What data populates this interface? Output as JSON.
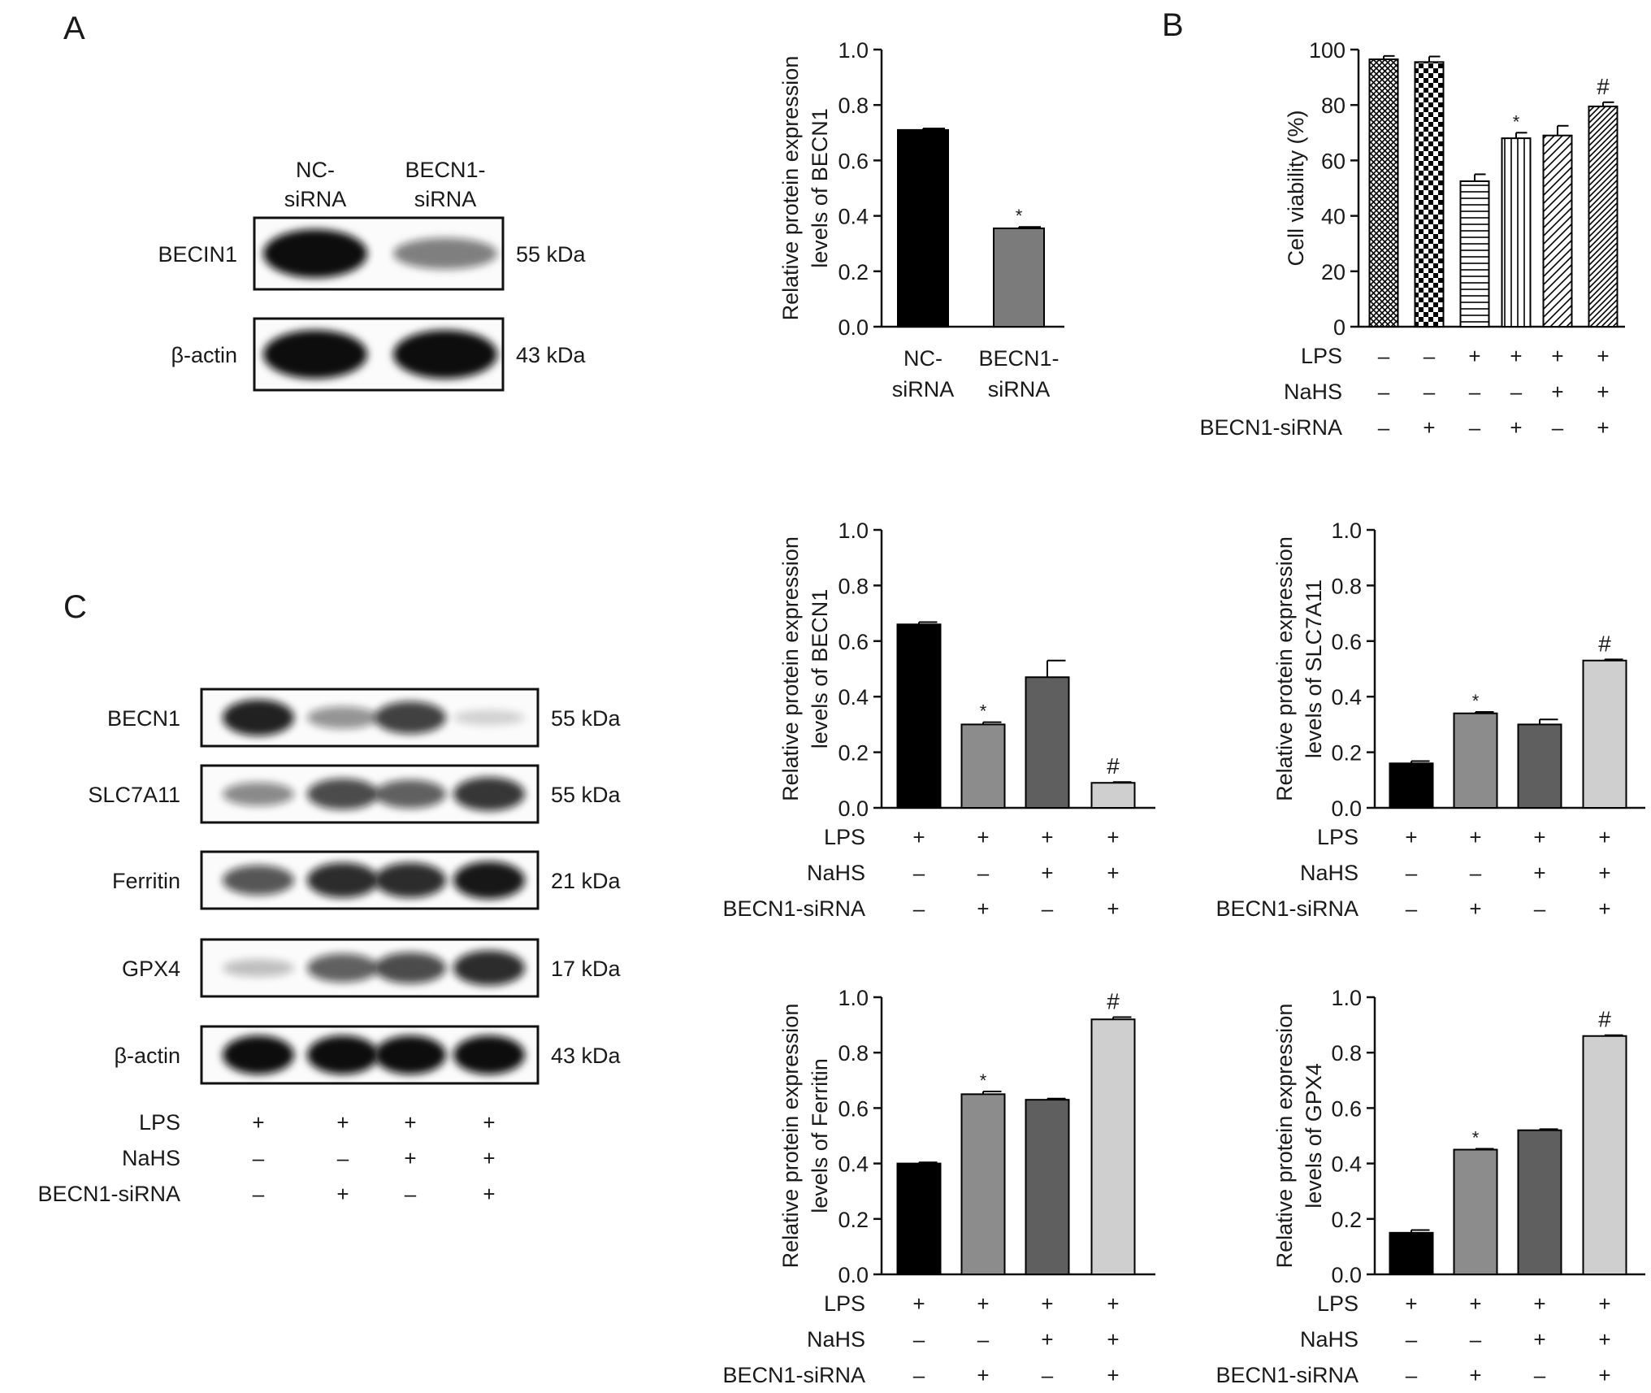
{
  "panels": {
    "A": "A",
    "B": "B",
    "C": "C"
  },
  "blots": {
    "A": {
      "lanes": [
        "NC-\nsiRNA",
        "BECN1-\nsiRNA"
      ],
      "rows": [
        {
          "protein": "BECIN1",
          "size": "55 kDa",
          "intensity": [
            1.0,
            0.45
          ]
        },
        {
          "protein": "β-actin",
          "size": "43 kDa",
          "intensity": [
            1.0,
            1.0
          ]
        }
      ]
    },
    "C": {
      "rows": [
        {
          "protein": "BECN1",
          "size": "55 kDa",
          "intensity": [
            0.9,
            0.35,
            0.75,
            0.06
          ]
        },
        {
          "protein": "SLC7A11",
          "size": "55 kDa",
          "intensity": [
            0.4,
            0.7,
            0.6,
            0.8
          ]
        },
        {
          "protein": "Ferritin",
          "size": "21 kDa",
          "intensity": [
            0.65,
            0.85,
            0.85,
            0.95
          ]
        },
        {
          "protein": "GPX4",
          "size": "17 kDa",
          "intensity": [
            0.15,
            0.6,
            0.7,
            0.85
          ]
        },
        {
          "protein": "β-actin",
          "size": "43 kDa",
          "intensity": [
            1.0,
            1.0,
            1.0,
            1.0
          ]
        }
      ],
      "treatments": [
        {
          "name": "LPS",
          "values": [
            "+",
            "+",
            "+",
            "+"
          ]
        },
        {
          "name": "NaHS",
          "values": [
            "–",
            "–",
            "+",
            "+"
          ]
        },
        {
          "name": "BECN1-siRNA",
          "values": [
            "–",
            "+",
            "–",
            "+"
          ]
        }
      ]
    }
  },
  "chart_data": [
    {
      "id": "A-becn1",
      "type": "bar",
      "ylabel": "Relative protein expression\nlevels of BECN1",
      "ylim": [
        0,
        1.0
      ],
      "yticks": [
        "0.0",
        "0.2",
        "0.4",
        "0.6",
        "0.8",
        "1.0"
      ],
      "categories": [
        "NC-\nsiRNA",
        "BECN1-\nsiRNA"
      ],
      "values": [
        0.71,
        0.355
      ],
      "errors": [
        0.005,
        0.005
      ],
      "colors": [
        "#000000",
        "#7b7b7b"
      ],
      "patterns": [
        "solid",
        "solid"
      ],
      "annotations": [
        "",
        "*"
      ]
    },
    {
      "id": "B-viability",
      "type": "bar",
      "ylabel": "Cell viability (%)",
      "ylim": [
        0,
        100
      ],
      "yticks": [
        "0",
        "20",
        "40",
        "60",
        "80",
        "100"
      ],
      "values": [
        96.5,
        95.5,
        52.5,
        68,
        69,
        79.5
      ],
      "errors": [
        1.2,
        2.0,
        2.5,
        2.0,
        3.5,
        1.5
      ],
      "colors": [
        "#ffffff",
        "#ffffff",
        "#ffffff",
        "#ffffff",
        "#ffffff",
        "#ffffff"
      ],
      "patterns": [
        "crosshatch",
        "checker",
        "horizontal",
        "vertical",
        "diag-wide",
        "diag-dense"
      ],
      "annotations": [
        "",
        "",
        "",
        "*",
        "",
        "#"
      ],
      "treatments": [
        {
          "name": "LPS",
          "values": [
            "–",
            "–",
            "+",
            "+",
            "+",
            "+"
          ]
        },
        {
          "name": "NaHS",
          "values": [
            "–",
            "–",
            "–",
            "–",
            "+",
            "+"
          ]
        },
        {
          "name": "BECN1-siRNA",
          "values": [
            "–",
            "+",
            "–",
            "+",
            "–",
            "+"
          ]
        }
      ]
    },
    {
      "id": "C-becn1",
      "type": "bar",
      "ylabel": "Relative protein expression\nlevels of BECN1",
      "ylim": [
        0,
        1.0
      ],
      "yticks": [
        "0.0",
        "0.2",
        "0.4",
        "0.6",
        "0.8",
        "1.0"
      ],
      "values": [
        0.66,
        0.3,
        0.47,
        0.09
      ],
      "errors": [
        0.008,
        0.008,
        0.06,
        0.003
      ],
      "colors": [
        "#000000",
        "#8c8c8c",
        "#5f5f5f",
        "#cfcfcf"
      ],
      "patterns": [
        "solid",
        "solid",
        "solid",
        "solid"
      ],
      "annotations": [
        "",
        "*",
        "",
        "#"
      ],
      "treatments": [
        {
          "name": "LPS",
          "values": [
            "+",
            "+",
            "+",
            "+"
          ]
        },
        {
          "name": "NaHS",
          "values": [
            "–",
            "–",
            "+",
            "+"
          ]
        },
        {
          "name": "BECN1-siRNA",
          "values": [
            "–",
            "+",
            "–",
            "+"
          ]
        }
      ]
    },
    {
      "id": "C-slc7a11",
      "type": "bar",
      "ylabel": "Relative protein expression\nlevels of SLC7A11",
      "ylim": [
        0,
        1.0
      ],
      "yticks": [
        "0.0",
        "0.2",
        "0.4",
        "0.6",
        "0.8",
        "1.0"
      ],
      "values": [
        0.16,
        0.34,
        0.3,
        0.53
      ],
      "errors": [
        0.008,
        0.005,
        0.018,
        0.004
      ],
      "colors": [
        "#000000",
        "#8c8c8c",
        "#5f5f5f",
        "#cfcfcf"
      ],
      "patterns": [
        "solid",
        "solid",
        "solid",
        "solid"
      ],
      "annotations": [
        "",
        "*",
        "",
        "#"
      ],
      "treatments": [
        {
          "name": "LPS",
          "values": [
            "+",
            "+",
            "+",
            "+"
          ]
        },
        {
          "name": "NaHS",
          "values": [
            "–",
            "–",
            "+",
            "+"
          ]
        },
        {
          "name": "BECN1-siRNA",
          "values": [
            "–",
            "+",
            "–",
            "+"
          ]
        }
      ]
    },
    {
      "id": "C-ferritin",
      "type": "bar",
      "ylabel": "Relative protein expression\nlevels of Ferritin",
      "ylim": [
        0,
        1.0
      ],
      "yticks": [
        "0.0",
        "0.2",
        "0.4",
        "0.6",
        "0.8",
        "1.0"
      ],
      "values": [
        0.4,
        0.65,
        0.63,
        0.92
      ],
      "errors": [
        0.004,
        0.01,
        0.004,
        0.008
      ],
      "colors": [
        "#000000",
        "#8c8c8c",
        "#5f5f5f",
        "#cfcfcf"
      ],
      "patterns": [
        "solid",
        "solid",
        "solid",
        "solid"
      ],
      "annotations": [
        "",
        "*",
        "",
        "#"
      ],
      "treatments": [
        {
          "name": "LPS",
          "values": [
            "+",
            "+",
            "+",
            "+"
          ]
        },
        {
          "name": "NaHS",
          "values": [
            "–",
            "–",
            "+",
            "+"
          ]
        },
        {
          "name": "BECN1-siRNA",
          "values": [
            "–",
            "+",
            "–",
            "+"
          ]
        }
      ]
    },
    {
      "id": "C-gpx4",
      "type": "bar",
      "ylabel": "Relative protein expression\nlevels of GPX4",
      "ylim": [
        0,
        1.0
      ],
      "yticks": [
        "0.0",
        "0.2",
        "0.4",
        "0.6",
        "0.8",
        "1.0"
      ],
      "values": [
        0.15,
        0.45,
        0.52,
        0.86
      ],
      "errors": [
        0.01,
        0.003,
        0.004,
        0.003
      ],
      "colors": [
        "#000000",
        "#8c8c8c",
        "#5f5f5f",
        "#cfcfcf"
      ],
      "patterns": [
        "solid",
        "solid",
        "solid",
        "solid"
      ],
      "annotations": [
        "",
        "*",
        "",
        "#"
      ],
      "treatments": [
        {
          "name": "LPS",
          "values": [
            "+",
            "+",
            "+",
            "+"
          ]
        },
        {
          "name": "NaHS",
          "values": [
            "–",
            "–",
            "+",
            "+"
          ]
        },
        {
          "name": "BECN1-siRNA",
          "values": [
            "–",
            "+",
            "–",
            "+"
          ]
        }
      ]
    }
  ]
}
